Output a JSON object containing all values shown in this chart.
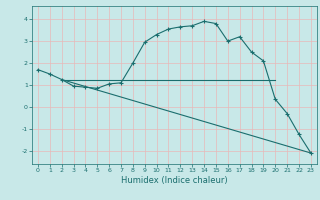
{
  "xlabel": "Humidex (Indice chaleur)",
  "bg_color": "#c8e8e8",
  "grid_color": "#e8b8b8",
  "line_color": "#1a6e6e",
  "xlim": [
    -0.5,
    23.5
  ],
  "ylim": [
    -2.6,
    4.6
  ],
  "yticks": [
    -2,
    -1,
    0,
    1,
    2,
    3,
    4
  ],
  "xticks": [
    0,
    1,
    2,
    3,
    4,
    5,
    6,
    7,
    8,
    9,
    10,
    11,
    12,
    13,
    14,
    15,
    16,
    17,
    18,
    19,
    20,
    21,
    22,
    23
  ],
  "series1_x": [
    0,
    1,
    2,
    3,
    4,
    5,
    6,
    7,
    8,
    9,
    10,
    11,
    12,
    13,
    14,
    15,
    16,
    17,
    18,
    19,
    20,
    21,
    22,
    23
  ],
  "series1_y": [
    1.7,
    1.5,
    1.25,
    0.95,
    0.9,
    0.85,
    1.05,
    1.1,
    2.0,
    2.95,
    3.3,
    3.55,
    3.65,
    3.7,
    3.9,
    3.8,
    3.0,
    3.2,
    2.5,
    2.1,
    0.35,
    -0.3,
    -1.25,
    -2.1
  ],
  "series2_x": [
    2,
    20
  ],
  "series2_y": [
    1.25,
    1.25
  ],
  "series3_x": [
    2,
    23
  ],
  "series3_y": [
    1.25,
    -2.1
  ],
  "xlabel_fontsize": 6,
  "tick_fontsize": 4.5,
  "linewidth": 0.8,
  "marker_size": 3
}
